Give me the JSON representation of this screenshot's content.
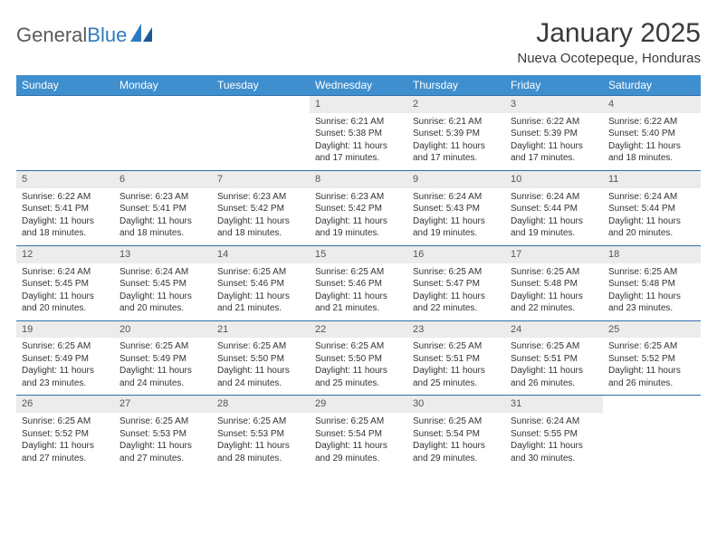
{
  "brand": {
    "name_part1": "General",
    "name_part2": "Blue"
  },
  "title": "January 2025",
  "location": "Nueva Ocotepeque, Honduras",
  "colors": {
    "header_bg": "#3f8fcf",
    "header_text": "#ffffff",
    "row_border": "#2f6fa8",
    "daynum_bg": "#ececec",
    "text": "#333333",
    "brand_gray": "#5a5a5a",
    "brand_blue": "#2f7bbf"
  },
  "weekdays": [
    "Sunday",
    "Monday",
    "Tuesday",
    "Wednesday",
    "Thursday",
    "Friday",
    "Saturday"
  ],
  "weeks": [
    [
      {
        "empty": true
      },
      {
        "empty": true
      },
      {
        "empty": true
      },
      {
        "day": "1",
        "sunrise": "Sunrise: 6:21 AM",
        "sunset": "Sunset: 5:38 PM",
        "dl1": "Daylight: 11 hours",
        "dl2": "and 17 minutes."
      },
      {
        "day": "2",
        "sunrise": "Sunrise: 6:21 AM",
        "sunset": "Sunset: 5:39 PM",
        "dl1": "Daylight: 11 hours",
        "dl2": "and 17 minutes."
      },
      {
        "day": "3",
        "sunrise": "Sunrise: 6:22 AM",
        "sunset": "Sunset: 5:39 PM",
        "dl1": "Daylight: 11 hours",
        "dl2": "and 17 minutes."
      },
      {
        "day": "4",
        "sunrise": "Sunrise: 6:22 AM",
        "sunset": "Sunset: 5:40 PM",
        "dl1": "Daylight: 11 hours",
        "dl2": "and 18 minutes."
      }
    ],
    [
      {
        "day": "5",
        "sunrise": "Sunrise: 6:22 AM",
        "sunset": "Sunset: 5:41 PM",
        "dl1": "Daylight: 11 hours",
        "dl2": "and 18 minutes."
      },
      {
        "day": "6",
        "sunrise": "Sunrise: 6:23 AM",
        "sunset": "Sunset: 5:41 PM",
        "dl1": "Daylight: 11 hours",
        "dl2": "and 18 minutes."
      },
      {
        "day": "7",
        "sunrise": "Sunrise: 6:23 AM",
        "sunset": "Sunset: 5:42 PM",
        "dl1": "Daylight: 11 hours",
        "dl2": "and 18 minutes."
      },
      {
        "day": "8",
        "sunrise": "Sunrise: 6:23 AM",
        "sunset": "Sunset: 5:42 PM",
        "dl1": "Daylight: 11 hours",
        "dl2": "and 19 minutes."
      },
      {
        "day": "9",
        "sunrise": "Sunrise: 6:24 AM",
        "sunset": "Sunset: 5:43 PM",
        "dl1": "Daylight: 11 hours",
        "dl2": "and 19 minutes."
      },
      {
        "day": "10",
        "sunrise": "Sunrise: 6:24 AM",
        "sunset": "Sunset: 5:44 PM",
        "dl1": "Daylight: 11 hours",
        "dl2": "and 19 minutes."
      },
      {
        "day": "11",
        "sunrise": "Sunrise: 6:24 AM",
        "sunset": "Sunset: 5:44 PM",
        "dl1": "Daylight: 11 hours",
        "dl2": "and 20 minutes."
      }
    ],
    [
      {
        "day": "12",
        "sunrise": "Sunrise: 6:24 AM",
        "sunset": "Sunset: 5:45 PM",
        "dl1": "Daylight: 11 hours",
        "dl2": "and 20 minutes."
      },
      {
        "day": "13",
        "sunrise": "Sunrise: 6:24 AM",
        "sunset": "Sunset: 5:45 PM",
        "dl1": "Daylight: 11 hours",
        "dl2": "and 20 minutes."
      },
      {
        "day": "14",
        "sunrise": "Sunrise: 6:25 AM",
        "sunset": "Sunset: 5:46 PM",
        "dl1": "Daylight: 11 hours",
        "dl2": "and 21 minutes."
      },
      {
        "day": "15",
        "sunrise": "Sunrise: 6:25 AM",
        "sunset": "Sunset: 5:46 PM",
        "dl1": "Daylight: 11 hours",
        "dl2": "and 21 minutes."
      },
      {
        "day": "16",
        "sunrise": "Sunrise: 6:25 AM",
        "sunset": "Sunset: 5:47 PM",
        "dl1": "Daylight: 11 hours",
        "dl2": "and 22 minutes."
      },
      {
        "day": "17",
        "sunrise": "Sunrise: 6:25 AM",
        "sunset": "Sunset: 5:48 PM",
        "dl1": "Daylight: 11 hours",
        "dl2": "and 22 minutes."
      },
      {
        "day": "18",
        "sunrise": "Sunrise: 6:25 AM",
        "sunset": "Sunset: 5:48 PM",
        "dl1": "Daylight: 11 hours",
        "dl2": "and 23 minutes."
      }
    ],
    [
      {
        "day": "19",
        "sunrise": "Sunrise: 6:25 AM",
        "sunset": "Sunset: 5:49 PM",
        "dl1": "Daylight: 11 hours",
        "dl2": "and 23 minutes."
      },
      {
        "day": "20",
        "sunrise": "Sunrise: 6:25 AM",
        "sunset": "Sunset: 5:49 PM",
        "dl1": "Daylight: 11 hours",
        "dl2": "and 24 minutes."
      },
      {
        "day": "21",
        "sunrise": "Sunrise: 6:25 AM",
        "sunset": "Sunset: 5:50 PM",
        "dl1": "Daylight: 11 hours",
        "dl2": "and 24 minutes."
      },
      {
        "day": "22",
        "sunrise": "Sunrise: 6:25 AM",
        "sunset": "Sunset: 5:50 PM",
        "dl1": "Daylight: 11 hours",
        "dl2": "and 25 minutes."
      },
      {
        "day": "23",
        "sunrise": "Sunrise: 6:25 AM",
        "sunset": "Sunset: 5:51 PM",
        "dl1": "Daylight: 11 hours",
        "dl2": "and 25 minutes."
      },
      {
        "day": "24",
        "sunrise": "Sunrise: 6:25 AM",
        "sunset": "Sunset: 5:51 PM",
        "dl1": "Daylight: 11 hours",
        "dl2": "and 26 minutes."
      },
      {
        "day": "25",
        "sunrise": "Sunrise: 6:25 AM",
        "sunset": "Sunset: 5:52 PM",
        "dl1": "Daylight: 11 hours",
        "dl2": "and 26 minutes."
      }
    ],
    [
      {
        "day": "26",
        "sunrise": "Sunrise: 6:25 AM",
        "sunset": "Sunset: 5:52 PM",
        "dl1": "Daylight: 11 hours",
        "dl2": "and 27 minutes."
      },
      {
        "day": "27",
        "sunrise": "Sunrise: 6:25 AM",
        "sunset": "Sunset: 5:53 PM",
        "dl1": "Daylight: 11 hours",
        "dl2": "and 27 minutes."
      },
      {
        "day": "28",
        "sunrise": "Sunrise: 6:25 AM",
        "sunset": "Sunset: 5:53 PM",
        "dl1": "Daylight: 11 hours",
        "dl2": "and 28 minutes."
      },
      {
        "day": "29",
        "sunrise": "Sunrise: 6:25 AM",
        "sunset": "Sunset: 5:54 PM",
        "dl1": "Daylight: 11 hours",
        "dl2": "and 29 minutes."
      },
      {
        "day": "30",
        "sunrise": "Sunrise: 6:25 AM",
        "sunset": "Sunset: 5:54 PM",
        "dl1": "Daylight: 11 hours",
        "dl2": "and 29 minutes."
      },
      {
        "day": "31",
        "sunrise": "Sunrise: 6:24 AM",
        "sunset": "Sunset: 5:55 PM",
        "dl1": "Daylight: 11 hours",
        "dl2": "and 30 minutes."
      },
      {
        "empty": true
      }
    ]
  ]
}
